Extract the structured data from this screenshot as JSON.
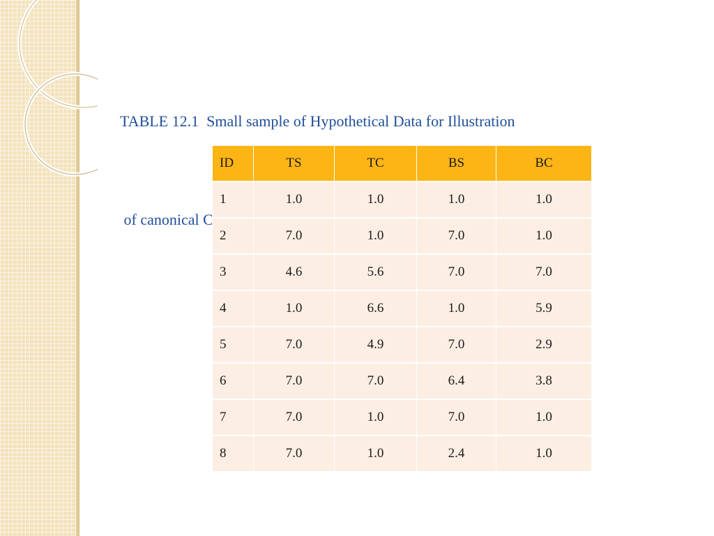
{
  "slide": {
    "title_lines": [
      "TABLE 12.1  Small sample of Hypothetical Data for Illustration",
      " of canonical Correlation Analysis"
    ]
  },
  "table": {
    "columns": [
      "ID",
      "TS",
      "TC",
      "BS",
      "BC"
    ],
    "rows": [
      [
        "1",
        "1.0",
        "1.0",
        "1.0",
        "1.0"
      ],
      [
        "2",
        "7.0",
        "1.0",
        "7.0",
        "1.0"
      ],
      [
        "3",
        "4.6",
        "5.6",
        "7.0",
        "7.0"
      ],
      [
        "4",
        "1.0",
        "6.6",
        "1.0",
        "5.9"
      ],
      [
        "5",
        "7.0",
        "4.9",
        "7.0",
        "2.9"
      ],
      [
        "6",
        "7.0",
        "7.0",
        "6.4",
        "3.8"
      ],
      [
        "7",
        "7.0",
        "1.0",
        "7.0",
        "1.0"
      ],
      [
        "8",
        "7.0",
        "1.0",
        "2.4",
        "1.0"
      ]
    ]
  },
  "colors": {
    "title": "#1f4e9a",
    "header_fill": "#fdb515",
    "row_fill": "#fdeee3",
    "side_strip": "#f3e3bd"
  }
}
